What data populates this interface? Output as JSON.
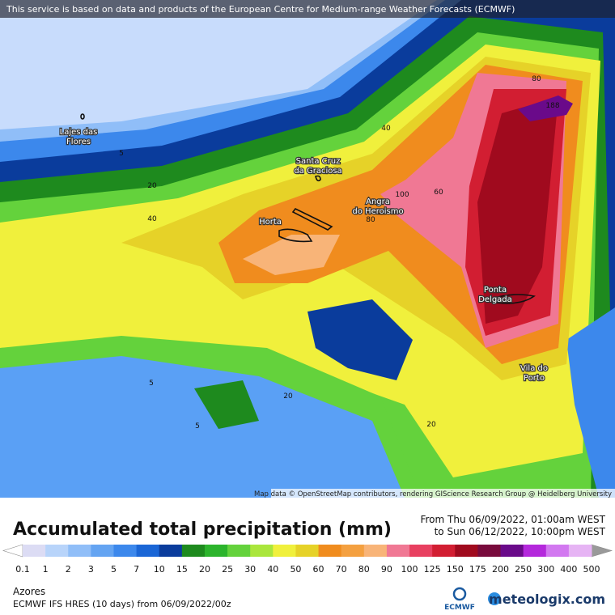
{
  "banner": "This service is based on data and products of the European Centre for Medium-range Weather Forecasts (ECMWF)",
  "places": [
    {
      "lines": [
        "Lajes das",
        "Flores"
      ]
    },
    {
      "lines": [
        "Santa Cruz",
        "da Graciosa"
      ]
    },
    {
      "lines": [
        "Angra",
        "do Heroismo"
      ]
    },
    {
      "lines": [
        "Horta"
      ]
    },
    {
      "lines": [
        "Ponta",
        "Delgada"
      ]
    },
    {
      "lines": [
        "Vila do",
        "Porto"
      ]
    }
  ],
  "contour_labels": [
    40,
    5,
    20,
    40,
    80,
    188,
    100,
    60,
    80,
    5,
    20,
    5,
    20
  ],
  "attribution": "Map data © OpenStreetMap contributors, rendering GIScience Research Group @ Heidelberg University",
  "title": "Accumulated total precipitation (mm)",
  "period": {
    "from": "From Thu 06/09/2022, 01:00am WEST",
    "to": "to Sun 06/12/2022, 10:00pm WEST"
  },
  "legend": {
    "labels": [
      0.1,
      1,
      2,
      3,
      5,
      7,
      10,
      15,
      20,
      25,
      30,
      40,
      50,
      60,
      70,
      80,
      90,
      100,
      125,
      150,
      175,
      200,
      250,
      300,
      400,
      500
    ],
    "colors": [
      "#dcdcf4",
      "#b8d4fa",
      "#90bef8",
      "#64a4f2",
      "#3c88ec",
      "#1a66d6",
      "#0a3c9c",
      "#1e8a1e",
      "#2cb42c",
      "#64d23c",
      "#aae63c",
      "#f0f03c",
      "#e6d228",
      "#f08c1e",
      "#f4a040",
      "#f8b478",
      "#f07894",
      "#e84060",
      "#d21e32",
      "#a00a1e",
      "#780a3c",
      "#6a0a8a",
      "#b428dc",
      "#d278f0",
      "#e6b4f4"
    ],
    "under_color": "#ffffff",
    "over_color": "#999999"
  },
  "region": "Azores",
  "model": "ECMWF IFS HRES (10 days)  from  06/09/2022/00z",
  "ecmwf_logo": "ECMWF",
  "brand": "meteologix.com"
}
